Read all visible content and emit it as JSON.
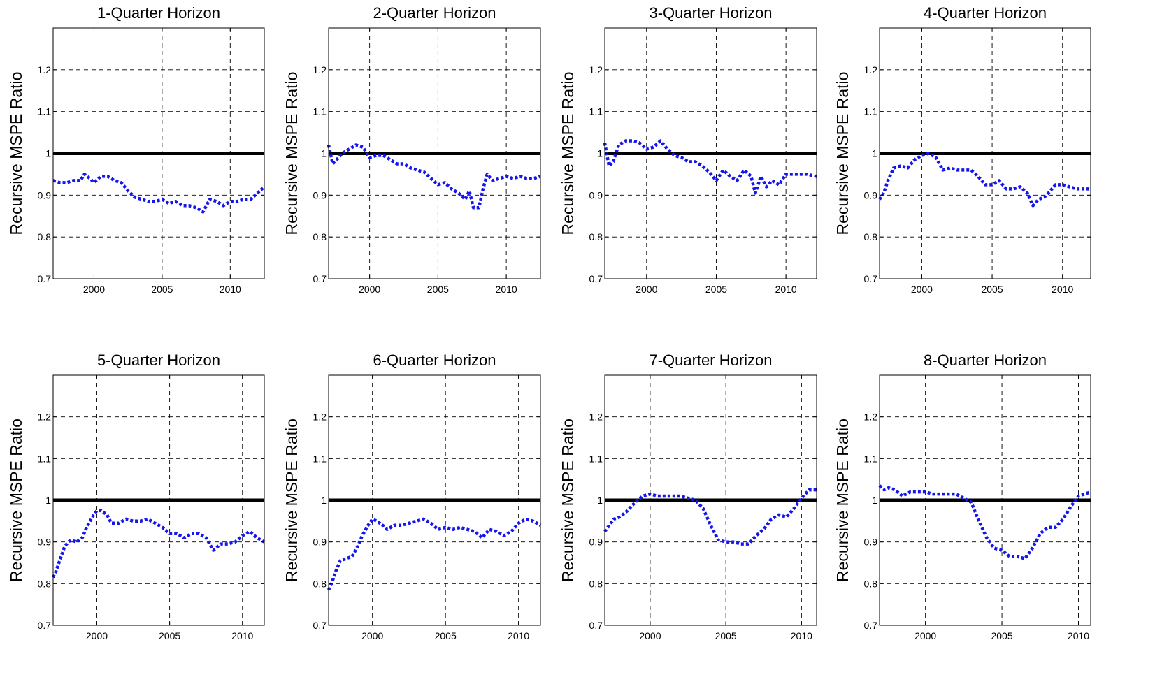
{
  "chart_data": [
    {
      "type": "line",
      "title": "1-Quarter Horizon",
      "ylabel": "Recursive MSPE Ratio",
      "xlabel": "",
      "xlim": [
        1997.0,
        2012.5
      ],
      "ylim": [
        0.7,
        1.3
      ],
      "xticks": [
        "2000",
        "2005",
        "2010"
      ],
      "yticks": [
        "0.7",
        "0.8",
        "0.9",
        "1",
        "1.1",
        "1.2"
      ],
      "grid": true,
      "reference_line": 1.0,
      "series": [
        {
          "x": [
            1997.0,
            1997.5,
            1998.0,
            1998.5,
            1999.0,
            1999.3,
            1999.7,
            2000.0,
            2000.5,
            2001.0,
            2001.5,
            2002.0,
            2002.5,
            2003.0,
            2003.5,
            2004.0,
            2004.5,
            2005.0,
            2005.5,
            2006.0,
            2006.5,
            2007.0,
            2007.5,
            2008.0,
            2008.5,
            2009.0,
            2009.5,
            2010.0,
            2010.5,
            2011.0,
            2011.5,
            2012.0,
            2012.5
          ],
          "y": [
            0.935,
            0.93,
            0.93,
            0.935,
            0.935,
            0.95,
            0.94,
            0.93,
            0.945,
            0.945,
            0.935,
            0.93,
            0.91,
            0.895,
            0.89,
            0.885,
            0.885,
            0.89,
            0.88,
            0.885,
            0.875,
            0.875,
            0.87,
            0.86,
            0.89,
            0.885,
            0.875,
            0.885,
            0.885,
            0.89,
            0.89,
            0.905,
            0.92
          ]
        }
      ]
    },
    {
      "type": "line",
      "title": "2-Quarter Horizon",
      "ylabel": "Recursive MSPE Ratio",
      "xlabel": "",
      "xlim": [
        1997.0,
        2012.5
      ],
      "ylim": [
        0.7,
        1.3
      ],
      "xticks": [
        "2000",
        "2005",
        "2010"
      ],
      "yticks": [
        "0.7",
        "0.8",
        "0.9",
        "1",
        "1.1",
        "1.2"
      ],
      "grid": true,
      "reference_line": 1.0,
      "series": [
        {
          "x": [
            1997.0,
            1997.3,
            1997.6,
            1998.0,
            1998.5,
            1999.0,
            1999.5,
            2000.0,
            2000.5,
            2001.0,
            2001.5,
            2002.0,
            2002.5,
            2003.0,
            2003.5,
            2004.0,
            2004.5,
            2005.0,
            2005.5,
            2006.0,
            2006.5,
            2007.0,
            2007.3,
            2007.6,
            2008.0,
            2008.3,
            2008.6,
            2009.0,
            2009.5,
            2010.0,
            2010.5,
            2011.0,
            2011.5,
            2012.0,
            2012.5
          ],
          "y": [
            1.02,
            0.975,
            0.985,
            1.0,
            1.01,
            1.02,
            1.015,
            0.99,
            0.995,
            0.995,
            0.985,
            0.975,
            0.975,
            0.965,
            0.96,
            0.955,
            0.94,
            0.925,
            0.93,
            0.915,
            0.905,
            0.89,
            0.91,
            0.87,
            0.87,
            0.915,
            0.95,
            0.935,
            0.94,
            0.945,
            0.94,
            0.945,
            0.94,
            0.94,
            0.945
          ]
        }
      ]
    },
    {
      "type": "line",
      "title": "3-Quarter Horizon",
      "ylabel": "Recursive MSPE Ratio",
      "xlabel": "",
      "xlim": [
        1997.0,
        2012.2
      ],
      "ylim": [
        0.7,
        1.3
      ],
      "xticks": [
        "2000",
        "2005",
        "2010"
      ],
      "yticks": [
        "0.7",
        "0.8",
        "0.9",
        "1",
        "1.1",
        "1.2"
      ],
      "grid": true,
      "reference_line": 1.0,
      "series": [
        {
          "x": [
            1997.0,
            1997.3,
            1997.6,
            1998.0,
            1998.5,
            1999.0,
            1999.5,
            2000.0,
            2000.5,
            2001.0,
            2001.5,
            2002.0,
            2002.5,
            2003.0,
            2003.5,
            2004.0,
            2004.5,
            2005.0,
            2005.5,
            2006.0,
            2006.5,
            2007.0,
            2007.5,
            2007.8,
            2008.2,
            2008.6,
            2009.0,
            2009.5,
            2010.0,
            2010.5,
            2011.0,
            2011.5,
            2012.2
          ],
          "y": [
            1.025,
            0.97,
            0.98,
            1.02,
            1.03,
            1.03,
            1.025,
            1.01,
            1.015,
            1.03,
            1.01,
            0.995,
            0.99,
            0.98,
            0.98,
            0.97,
            0.955,
            0.935,
            0.96,
            0.945,
            0.935,
            0.96,
            0.945,
            0.905,
            0.945,
            0.92,
            0.935,
            0.925,
            0.95,
            0.95,
            0.95,
            0.95,
            0.945
          ]
        }
      ]
    },
    {
      "type": "line",
      "title": "4-Quarter Horizon",
      "ylabel": "Recursive MSPE Ratio",
      "xlabel": "",
      "xlim": [
        1997.0,
        2012.0
      ],
      "ylim": [
        0.7,
        1.3
      ],
      "xticks": [
        "2000",
        "2005",
        "2010"
      ],
      "yticks": [
        "0.7",
        "0.8",
        "0.9",
        "1",
        "1.1",
        "1.2"
      ],
      "grid": true,
      "reference_line": 1.0,
      "series": [
        {
          "x": [
            1997.0,
            1997.3,
            1997.6,
            1998.0,
            1998.5,
            1999.0,
            1999.5,
            2000.0,
            2000.5,
            2001.0,
            2001.5,
            2002.0,
            2002.5,
            2003.0,
            2003.5,
            2004.0,
            2004.5,
            2005.0,
            2005.5,
            2006.0,
            2006.5,
            2007.0,
            2007.5,
            2007.9,
            2008.3,
            2008.7,
            2009.0,
            2009.5,
            2010.0,
            2010.5,
            2011.0,
            2011.5,
            2012.0
          ],
          "y": [
            0.89,
            0.905,
            0.935,
            0.965,
            0.97,
            0.965,
            0.985,
            0.995,
            1.0,
            0.99,
            0.96,
            0.965,
            0.96,
            0.96,
            0.96,
            0.945,
            0.925,
            0.925,
            0.935,
            0.915,
            0.915,
            0.92,
            0.905,
            0.875,
            0.89,
            0.895,
            0.905,
            0.925,
            0.925,
            0.92,
            0.915,
            0.915,
            0.915
          ]
        }
      ]
    },
    {
      "type": "line",
      "title": "5-Quarter Horizon",
      "ylabel": "Recursive MSPE Ratio",
      "xlabel": "",
      "xlim": [
        1997.0,
        2011.5
      ],
      "ylim": [
        0.7,
        1.3
      ],
      "xticks": [
        "2000",
        "2005",
        "2010"
      ],
      "yticks": [
        "0.7",
        "0.8",
        "0.9",
        "1",
        "1.1",
        "1.2"
      ],
      "grid": true,
      "reference_line": 1.0,
      "series": [
        {
          "x": [
            1997.0,
            1997.2,
            1997.5,
            1997.8,
            1998.2,
            1998.6,
            1999.0,
            1999.3,
            1999.7,
            2000.0,
            2000.3,
            2000.7,
            2001.0,
            2001.5,
            2002.0,
            2002.5,
            2003.0,
            2003.5,
            2004.0,
            2004.5,
            2005.0,
            2005.5,
            2006.0,
            2006.5,
            2007.0,
            2007.5,
            2008.0,
            2008.5,
            2009.0,
            2009.5,
            2010.0,
            2010.5,
            2011.0,
            2011.5
          ],
          "y": [
            0.815,
            0.83,
            0.86,
            0.89,
            0.905,
            0.9,
            0.91,
            0.935,
            0.96,
            0.975,
            0.975,
            0.965,
            0.945,
            0.945,
            0.955,
            0.95,
            0.95,
            0.955,
            0.945,
            0.935,
            0.92,
            0.92,
            0.91,
            0.92,
            0.92,
            0.91,
            0.88,
            0.895,
            0.895,
            0.9,
            0.915,
            0.925,
            0.91,
            0.9
          ]
        }
      ]
    },
    {
      "type": "line",
      "title": "6-Quarter Horizon",
      "ylabel": "Recursive MSPE Ratio",
      "xlabel": "",
      "xlim": [
        1997.0,
        2011.5
      ],
      "ylim": [
        0.7,
        1.3
      ],
      "xticks": [
        "2000",
        "2005",
        "2010"
      ],
      "yticks": [
        "0.7",
        "0.8",
        "0.9",
        "1",
        "1.1",
        "1.2"
      ],
      "grid": true,
      "reference_line": 1.0,
      "series": [
        {
          "x": [
            1997.0,
            1997.2,
            1997.5,
            1997.8,
            1998.2,
            1998.6,
            1999.0,
            1999.3,
            1999.7,
            2000.0,
            2000.3,
            2000.7,
            2001.0,
            2001.5,
            2002.0,
            2002.5,
            2003.0,
            2003.5,
            2004.0,
            2004.5,
            2005.0,
            2005.5,
            2006.0,
            2006.5,
            2007.0,
            2007.5,
            2008.0,
            2008.5,
            2009.0,
            2009.5,
            2010.0,
            2010.5,
            2011.0,
            2011.5
          ],
          "y": [
            0.785,
            0.8,
            0.83,
            0.855,
            0.86,
            0.865,
            0.89,
            0.915,
            0.94,
            0.955,
            0.95,
            0.94,
            0.93,
            0.94,
            0.94,
            0.945,
            0.95,
            0.955,
            0.945,
            0.93,
            0.935,
            0.93,
            0.935,
            0.93,
            0.925,
            0.91,
            0.93,
            0.925,
            0.915,
            0.925,
            0.945,
            0.955,
            0.95,
            0.94
          ]
        }
      ]
    },
    {
      "type": "line",
      "title": "7-Quarter Horizon",
      "ylabel": "Recursive MSPE Ratio",
      "xlabel": "",
      "xlim": [
        1997.0,
        2011.0
      ],
      "ylim": [
        0.7,
        1.3
      ],
      "xticks": [
        "2000",
        "2005",
        "2010"
      ],
      "yticks": [
        "0.7",
        "0.8",
        "0.9",
        "1",
        "1.1",
        "1.2"
      ],
      "grid": true,
      "reference_line": 1.0,
      "series": [
        {
          "x": [
            1997.0,
            1997.3,
            1997.6,
            1998.0,
            1998.5,
            1999.0,
            1999.5,
            2000.0,
            2000.5,
            2001.0,
            2001.5,
            2002.0,
            2002.5,
            2003.0,
            2003.5,
            2004.0,
            2004.5,
            2005.0,
            2005.5,
            2006.0,
            2006.5,
            2007.0,
            2007.5,
            2008.0,
            2008.5,
            2009.0,
            2009.5,
            2010.0,
            2010.5,
            2011.0
          ],
          "y": [
            0.925,
            0.94,
            0.955,
            0.96,
            0.975,
            0.995,
            1.01,
            1.015,
            1.01,
            1.01,
            1.01,
            1.01,
            1.005,
            1.0,
            0.98,
            0.94,
            0.905,
            0.9,
            0.9,
            0.895,
            0.895,
            0.915,
            0.93,
            0.955,
            0.965,
            0.96,
            0.98,
            1.005,
            1.025,
            1.025
          ]
        }
      ]
    },
    {
      "type": "line",
      "title": "8-Quarter Horizon",
      "ylabel": "Recursive MSPE Ratio",
      "xlabel": "",
      "xlim": [
        1997.0,
        2010.8
      ],
      "ylim": [
        0.7,
        1.3
      ],
      "xticks": [
        "2000",
        "2005",
        "2010"
      ],
      "yticks": [
        "0.7",
        "0.8",
        "0.9",
        "1",
        "1.1",
        "1.2"
      ],
      "grid": true,
      "reference_line": 1.0,
      "series": [
        {
          "x": [
            1997.0,
            1997.3,
            1997.6,
            1998.0,
            1998.5,
            1999.0,
            1999.5,
            2000.0,
            2000.5,
            2001.0,
            2001.5,
            2002.0,
            2002.5,
            2003.0,
            2003.5,
            2004.0,
            2004.5,
            2005.0,
            2005.5,
            2006.0,
            2006.5,
            2007.0,
            2007.5,
            2008.0,
            2008.5,
            2009.0,
            2009.5,
            2010.0,
            2010.4,
            2010.8
          ],
          "y": [
            1.035,
            1.025,
            1.03,
            1.025,
            1.01,
            1.02,
            1.02,
            1.02,
            1.015,
            1.015,
            1.015,
            1.015,
            1.005,
            0.995,
            0.95,
            0.91,
            0.885,
            0.88,
            0.865,
            0.865,
            0.86,
            0.885,
            0.92,
            0.935,
            0.935,
            0.955,
            0.985,
            1.01,
            1.015,
            1.02
          ]
        }
      ]
    }
  ]
}
